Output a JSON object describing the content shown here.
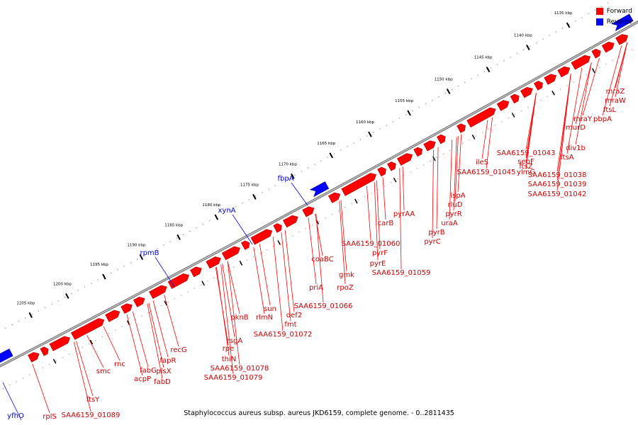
{
  "legend": {
    "forward": {
      "label": "Forward",
      "color": "#ff0000"
    },
    "reverse": {
      "label": "Reverse",
      "color": "#0000ff"
    }
  },
  "footer": "Staphylococcus aureus subsp. aureus JKD6159, complete genome. - 0..2811435",
  "scale": {
    "unit": "kbp",
    "ticks": [
      "1135 kbp",
      "1140 kbp",
      "1145 kbp",
      "1150 kbp",
      "1155 kbp",
      "1160 kbp",
      "1165 kbp",
      "1170 kbp",
      "1175 kbp",
      "1180 kbp",
      "1185 kbp",
      "1190 kbp",
      "1195 kbp",
      "1200 kbp",
      "1205 kbp"
    ]
  },
  "forward_labels": [
    "mraZ",
    "mraW",
    "ftsL",
    "pbpA",
    "mraY",
    "murD",
    "div1b",
    "ftsA",
    "SAA6159_01043",
    "sepF",
    "ftsZ",
    "ylmG",
    "SAA6159_01038",
    "SAA6159_01039",
    "SAA6159_01042",
    "ileS",
    "SAA6159_01045",
    "lspA",
    "rluD",
    "pyrR",
    "uraA",
    "pyrB",
    "pyrC",
    "pyrAA",
    "carB",
    "SAA6159_01060",
    "pyrF",
    "pyrE",
    "SAA6159_01059",
    "coaBC",
    "gmk",
    "rpoZ",
    "priA",
    "SAA6159_01066",
    "def2",
    "fmt",
    "sun",
    "rlmN",
    "pknB",
    "SAA6159_01072",
    "rsgA",
    "rpe",
    "thiN",
    "SAA6159_01078",
    "SAA6159_01079",
    "recG",
    "fapR",
    "plsX",
    "fabD",
    "fabG",
    "acpP",
    "rnc",
    "smc",
    "ftsY",
    "SAA6159_01089",
    "rplS"
  ],
  "reverse_labels": [
    "fbpA",
    "xynA",
    "rpmB",
    "yfhO"
  ]
}
